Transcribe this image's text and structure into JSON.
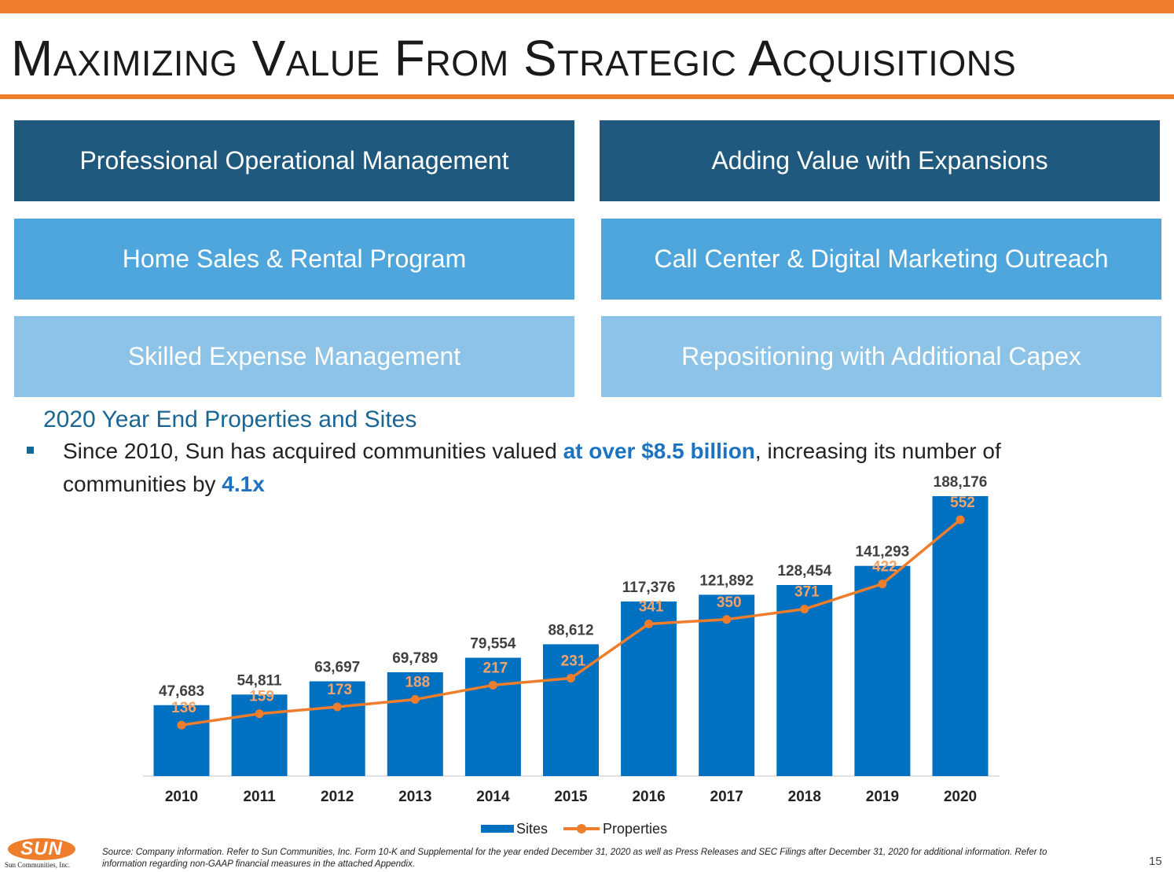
{
  "title": "Maximizing Value From Strategic Acquisitions",
  "boxes": [
    {
      "label": "Professional Operational Management"
    },
    {
      "label": "Adding Value with Expansions"
    },
    {
      "label": "Home Sales & Rental Program"
    },
    {
      "label": "Call Center & Digital Marketing Outreach"
    },
    {
      "label": "Skilled Expense Management"
    },
    {
      "label": "Repositioning with Additional Capex"
    }
  ],
  "subheading": "2020 Year End Properties and Sites",
  "bullet": {
    "part1": "Since 2010, Sun has acquired communities valued ",
    "highlight1": "at over $8.5 billion",
    "part2": ", increasing its number of communities by ",
    "highlight2": "4.1x"
  },
  "chart_data": {
    "type": "bar",
    "categories": [
      "2010",
      "2011",
      "2012",
      "2013",
      "2014",
      "2015",
      "2016",
      "2017",
      "2018",
      "2019",
      "2020"
    ],
    "series": [
      {
        "name": "Sites",
        "type": "bar",
        "values": [
          47683,
          54811,
          63697,
          69789,
          79554,
          88612,
          117376,
          121892,
          128454,
          141293,
          188176
        ],
        "labels": [
          "47,683",
          "54,811",
          "63,697",
          "69,789",
          "79,554",
          "88,612",
          "117,376",
          "121,892",
          "128,454",
          "141,293",
          "188,176"
        ]
      },
      {
        "name": "Properties",
        "type": "line",
        "values": [
          136,
          159,
          173,
          188,
          217,
          231,
          341,
          350,
          371,
          422,
          552
        ]
      }
    ],
    "legend": "bottom",
    "grid": false
  },
  "colors": {
    "accent": "#ee7d2c",
    "bar": "#0070c0",
    "line": "#ee7d2c"
  },
  "logo": {
    "text": "SUN",
    "subtext": "Sun Communities, Inc."
  },
  "footnote": "Source: Company information. Refer to Sun Communities, Inc. Form 10-K and Supplemental for the year ended December 31, 2020 as well as Press Releases and SEC Filings after December 31, 2020 for additional information. Refer to information regarding non-GAAP financial measures in the attached Appendix.",
  "page_number": "15"
}
